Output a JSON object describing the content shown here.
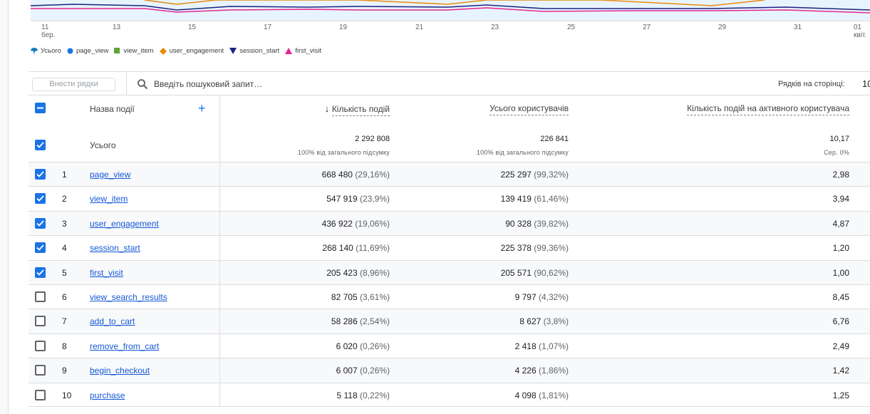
{
  "chart": {
    "x_ticks": [
      {
        "label": "11",
        "sub": "бер."
      },
      {
        "label": "13"
      },
      {
        "label": "15"
      },
      {
        "label": "17"
      },
      {
        "label": "19"
      },
      {
        "label": "21"
      },
      {
        "label": "23"
      },
      {
        "label": "25"
      },
      {
        "label": "27"
      },
      {
        "label": "29"
      },
      {
        "label": "31"
      },
      {
        "label": "01",
        "sub": "квіт."
      }
    ],
    "legend": [
      {
        "label": "Усього",
        "color": "#1a7bbf",
        "shape": "pin"
      },
      {
        "label": "page_view",
        "color": "#1a73e8",
        "shape": "circle"
      },
      {
        "label": "view_item",
        "color": "#5fa33b",
        "shape": "square"
      },
      {
        "label": "user_engagement",
        "color": "#e8890c",
        "shape": "diamond"
      },
      {
        "label": "session_start",
        "color": "#1a237e",
        "shape": "triangle-down"
      },
      {
        "label": "first_visit",
        "color": "#e52592",
        "shape": "triangle-up"
      }
    ]
  },
  "toolbar": {
    "add_rows": "Внести рядки",
    "search_placeholder": "Введіть пошуковий запит…",
    "rows_per_page_label": "Рядків на сторінці:",
    "rows_per_page_value": "10"
  },
  "table": {
    "headers": {
      "name": "Назва події",
      "events": "Кількість подій",
      "users": "Усього користувачів",
      "per_user": "Кількість подій на активного користувача"
    },
    "total": {
      "label": "Усього",
      "events": "2 292 808",
      "events_sub": "100% від загального підсумку",
      "users": "226 841",
      "users_sub": "100% від загального підсумку",
      "per_user": "10,17",
      "per_user_sub": "Сер. 0%"
    },
    "rows": [
      {
        "n": "1",
        "name": "page_view",
        "events": "668 480",
        "events_pct": "(29,16%)",
        "users": "225 297",
        "users_pct": "(99,32%)",
        "per_user": "2,98",
        "checked": true
      },
      {
        "n": "2",
        "name": "view_item",
        "events": "547 919",
        "events_pct": "(23,9%)",
        "users": "139 419",
        "users_pct": "(61,46%)",
        "per_user": "3,94",
        "checked": true
      },
      {
        "n": "3",
        "name": "user_engagement",
        "events": "436 922",
        "events_pct": "(19,06%)",
        "users": "90 328",
        "users_pct": "(39,82%)",
        "per_user": "4,87",
        "checked": true
      },
      {
        "n": "4",
        "name": "session_start",
        "events": "268 140",
        "events_pct": "(11,69%)",
        "users": "225 378",
        "users_pct": "(99,36%)",
        "per_user": "1,20",
        "checked": true
      },
      {
        "n": "5",
        "name": "first_visit",
        "events": "205 423",
        "events_pct": "(8,96%)",
        "users": "205 571",
        "users_pct": "(90,62%)",
        "per_user": "1,00",
        "checked": true
      },
      {
        "n": "6",
        "name": "view_search_results",
        "events": "82 705",
        "events_pct": "(3,61%)",
        "users": "9 797",
        "users_pct": "(4,32%)",
        "per_user": "8,45",
        "checked": false
      },
      {
        "n": "7",
        "name": "add_to_cart",
        "events": "58 286",
        "events_pct": "(2,54%)",
        "users": "8 627",
        "users_pct": "(3,8%)",
        "per_user": "6,76",
        "checked": false
      },
      {
        "n": "8",
        "name": "remove_from_cart",
        "events": "6 020",
        "events_pct": "(0,26%)",
        "users": "2 418",
        "users_pct": "(1,07%)",
        "per_user": "2,49",
        "checked": false
      },
      {
        "n": "9",
        "name": "begin_checkout",
        "events": "6 007",
        "events_pct": "(0,26%)",
        "users": "4 226",
        "users_pct": "(1,86%)",
        "per_user": "1,42",
        "checked": false
      },
      {
        "n": "10",
        "name": "purchase",
        "events": "5 118",
        "events_pct": "(0,22%)",
        "users": "4 098",
        "users_pct": "(1,81%)",
        "per_user": "1,25",
        "checked": false
      }
    ]
  }
}
